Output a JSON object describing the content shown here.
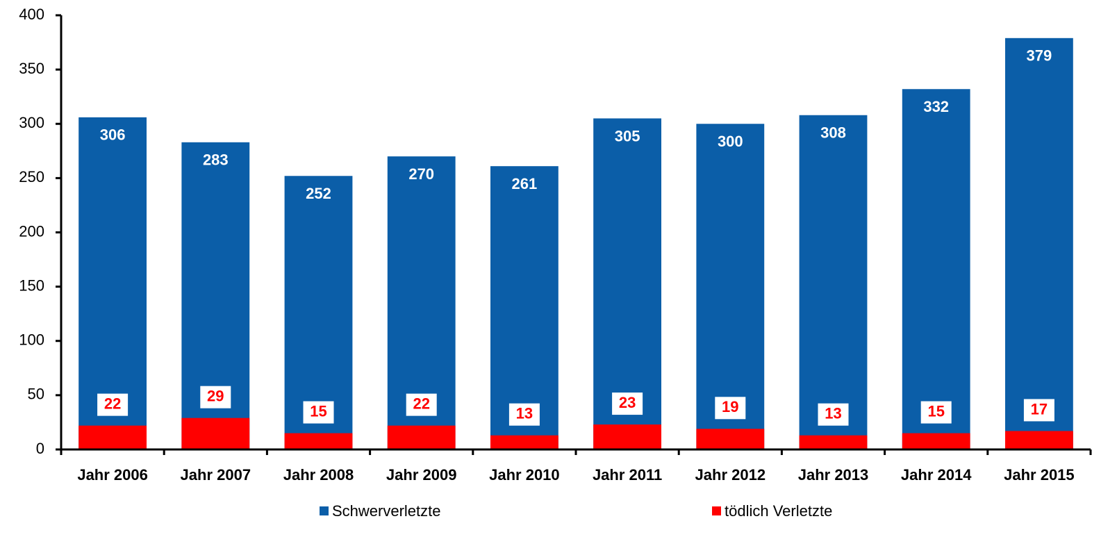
{
  "chart_data": {
    "type": "bar",
    "categories": [
      "Jahr 2006",
      "Jahr 2007",
      "Jahr 2008",
      "Jahr 2009",
      "Jahr 2010",
      "Jahr 2011",
      "Jahr 2012",
      "Jahr 2013",
      "Jahr 2014",
      "Jahr 2015"
    ],
    "series": [
      {
        "name": "Schwerverletzte",
        "color": "#0b5ea8",
        "values": [
          306,
          283,
          252,
          270,
          261,
          305,
          300,
          308,
          332,
          379
        ]
      },
      {
        "name": "tödlich Verletzte",
        "color": "#ff0000",
        "values": [
          22,
          29,
          15,
          22,
          13,
          23,
          19,
          13,
          15,
          17
        ]
      }
    ],
    "ylim": [
      0,
      400
    ],
    "yticks": [
      0,
      50,
      100,
      150,
      200,
      250,
      300,
      350,
      400
    ],
    "legend": "bottom"
  }
}
